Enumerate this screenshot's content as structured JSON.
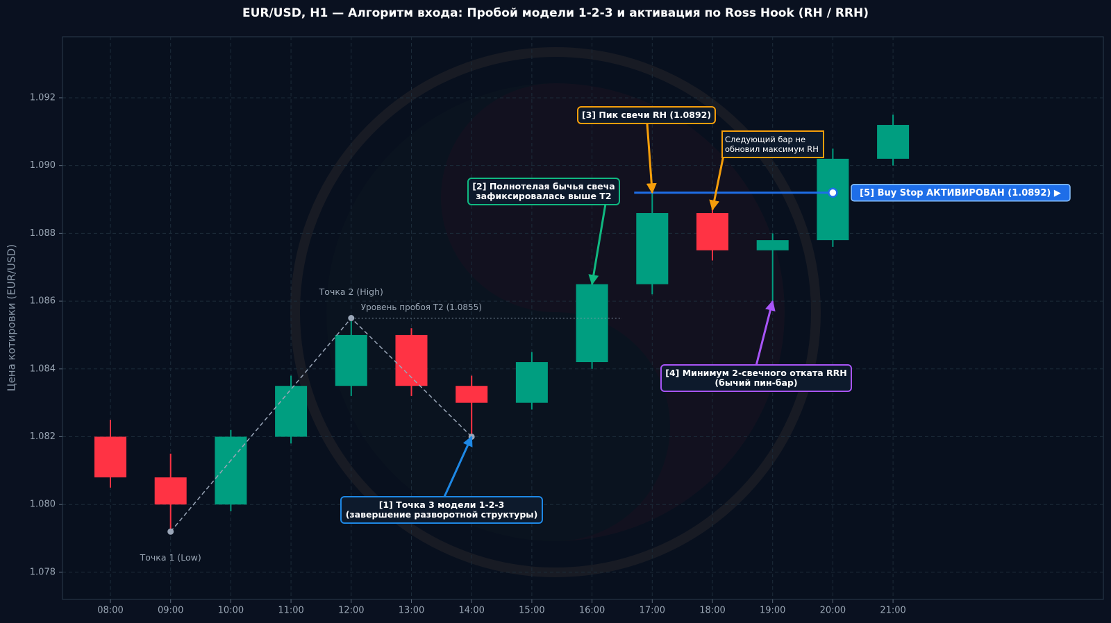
{
  "chart_data": {
    "type": "candlestick",
    "title": "EUR/USD, H1 — Алгоритм входа: Пробой модели 1-2-3 и активация по Ross Hook (RH / RRH)",
    "y_label": "Цена котировки (EUR/USD)",
    "categories": [
      "08:00",
      "09:00",
      "10:00",
      "11:00",
      "12:00",
      "13:00",
      "14:00",
      "15:00",
      "16:00",
      "17:00",
      "18:00",
      "19:00",
      "20:00",
      "21:00"
    ],
    "open": [
      1.082,
      1.0808,
      1.08,
      1.082,
      1.0835,
      1.085,
      1.0835,
      1.083,
      1.0842,
      1.0865,
      1.0886,
      1.0875,
      1.0878,
      1.0902
    ],
    "high": [
      1.0825,
      1.0815,
      1.0822,
      1.0838,
      1.0855,
      1.0852,
      1.0838,
      1.0845,
      1.0865,
      1.0892,
      1.0888,
      1.088,
      1.0905,
      1.0915
    ],
    "low": [
      1.0805,
      1.0792,
      1.0798,
      1.0818,
      1.0832,
      1.0832,
      1.082,
      1.0828,
      1.084,
      1.0862,
      1.0872,
      1.086,
      1.0876,
      1.09
    ],
    "close": [
      1.0808,
      1.08,
      1.082,
      1.0835,
      1.085,
      1.0835,
      1.083,
      1.0842,
      1.0865,
      1.0886,
      1.0875,
      1.0878,
      1.0902,
      1.0912
    ],
    "up_color": "#009e80",
    "down_color": "#ff3344",
    "ylim": [
      1.0772,
      1.0938
    ],
    "yticks": [
      1.078,
      {
        "value": 1.08,
        "label": "1.080"
      },
      1.082,
      1.084,
      1.086,
      1.088,
      {
        "value": 1.09,
        "label": "1.090"
      },
      1.092
    ],
    "grid": true,
    "points": [
      {
        "label": "Точка 1 (Low)",
        "x": "09:00",
        "y": 1.0792
      },
      {
        "label": "Точка 2 (High)",
        "x": "12:00",
        "y": 1.0855
      },
      {
        "x": "14:00",
        "y": 1.082
      }
    ],
    "levels": [
      {
        "label": "Уровень пробоя T2 (1.0855)",
        "value": 1.0855,
        "color": "#8899aa"
      },
      {
        "label": "[5] Buy Stop АКТИВИРОВАН (1.0892) ▶",
        "value": 1.0892,
        "color": "#1e6ee8",
        "x": "20:00"
      }
    ],
    "annotations": [
      {
        "lines": [
          "[1] Точка 3 модели 1-2-3",
          "(завершение разворотной структуры)"
        ],
        "x": "14:00",
        "y": 1.082,
        "color": "#1e88e5"
      },
      {
        "lines": [
          "[2] Полнотелая бычья свеча",
          "зафиксировалась выше T2"
        ],
        "x": "16:00",
        "y": 1.0865,
        "color": "#10b981"
      },
      {
        "lines": [
          "[3] Пик свечи RH (1.0892)"
        ],
        "x": "17:00",
        "y": 1.0892,
        "color": "#f59e0b"
      },
      {
        "lines": [
          "Следующий бар не",
          "обновил максимум RH"
        ],
        "x": "18:00",
        "y": 1.0887,
        "color": "#f59e0b"
      },
      {
        "lines": [
          "[4] Минимум 2-свечного отката RRH",
          "(бычий пин-бар)"
        ],
        "x": "19:00",
        "y": 1.086,
        "color": "#a855f7"
      }
    ]
  }
}
